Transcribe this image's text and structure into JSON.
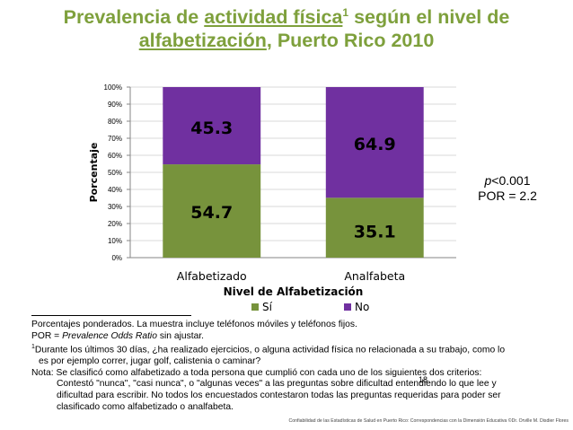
{
  "slide": {
    "title_part1": "Prevalencia de ",
    "title_underlined1": "actividad física",
    "title_superscript": "1",
    "title_part2": " según el nivel de",
    "title_underlined2": "alfabetización",
    "title_part3": ", Puerto Rico 2010",
    "title_color": "#7ea03c",
    "page_number": "18",
    "footer": "Confiabilidad de las Estadísticas de Salud en Puerto Rico: Correspondencias con la Dimensión Educativa ©Dr. Orville M. Disdier Flores"
  },
  "stats": {
    "p_symbol": "p",
    "p_value": "<0.001",
    "por": "POR = 2.2"
  },
  "chart_data": {
    "type": "bar",
    "stacked": true,
    "categories": [
      "Alfabetizado",
      "Analfabeta"
    ],
    "series": [
      {
        "name": "Sí",
        "values": [
          54.7,
          35.1
        ],
        "labels": [
          "54.7",
          "35.1"
        ],
        "color": "#77933c"
      },
      {
        "name": "No",
        "values": [
          45.3,
          64.9
        ],
        "labels": [
          "45.3",
          "64.9"
        ],
        "color": "#7030a0"
      }
    ],
    "ylabel": "Porcentaje",
    "xlabel": "Nivel de Alfabetización",
    "ylim": [
      0,
      100
    ],
    "yticks": [
      0,
      10,
      20,
      30,
      40,
      50,
      60,
      70,
      80,
      90,
      100
    ],
    "ytick_labels": [
      "0%",
      "10%",
      "20%",
      "30%",
      "40%",
      "50%",
      "60%",
      "70%",
      "80%",
      "90%",
      "100%"
    ],
    "legend_position": "bottom"
  },
  "notes": {
    "line1": "Porcentajes ponderados. La muestra incluye teléfonos móviles y teléfonos fijos.",
    "line2_prefix": "POR = ",
    "line2_italic": "Prevalence Odds Ratio",
    "line2_suffix": " sin ajustar.",
    "line3_super": "1",
    "line3": "Durante los últimos 30 días, ¿ha realizado ejercicios, o alguna actividad física no relacionada a su trabajo, como lo",
    "line4": "es por ejemplo correr, jugar golf, calistenia o caminar?",
    "line5": "Nota: Se clasificó como alfabetizado a toda persona que cumplió con cada uno de los siguientes dos criterios:",
    "line6": "Contestó \"nunca\", \"casi nunca\", o \"algunas veces\" a las preguntas sobre dificultad entendiendo lo que lee y",
    "line7": "dificultad para escribir.  No todos los encuestados contestaron todas las preguntas requeridas para poder ser",
    "line8": "clasificado como alfabetizado o analfabeta."
  }
}
